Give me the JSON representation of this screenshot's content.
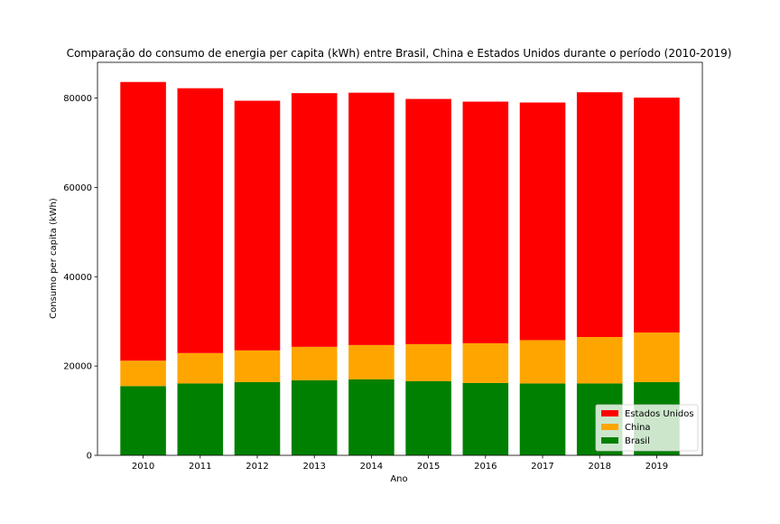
{
  "chart_data": {
    "type": "bar",
    "stacked": true,
    "title": "Comparação do consumo de energia per capita (kWh) entre Brasil, China e Estados Unidos durante o período (2010-2019)",
    "xlabel": "Ano",
    "ylabel": "Consumo per capita (kWh)",
    "categories": [
      "2010",
      "2011",
      "2012",
      "2013",
      "2014",
      "2015",
      "2016",
      "2017",
      "2018",
      "2019"
    ],
    "ylim": [
      0,
      88000
    ],
    "yticks": [
      0,
      20000,
      40000,
      60000,
      80000
    ],
    "grid": false,
    "legend_position": "lower-right",
    "series": [
      {
        "name": "Brasil",
        "color": "#008000",
        "values": [
          15500,
          16100,
          16400,
          16800,
          17000,
          16600,
          16200,
          16100,
          16100,
          16400
        ]
      },
      {
        "name": "China",
        "color": "#ffa500",
        "values": [
          5700,
          6800,
          7100,
          7500,
          7700,
          8300,
          8900,
          9700,
          10400,
          11100
        ]
      },
      {
        "name": "Estados Unidos",
        "color": "#ff0000",
        "values": [
          62400,
          59300,
          55900,
          56800,
          56500,
          54900,
          54100,
          53200,
          54800,
          52600
        ]
      }
    ]
  }
}
